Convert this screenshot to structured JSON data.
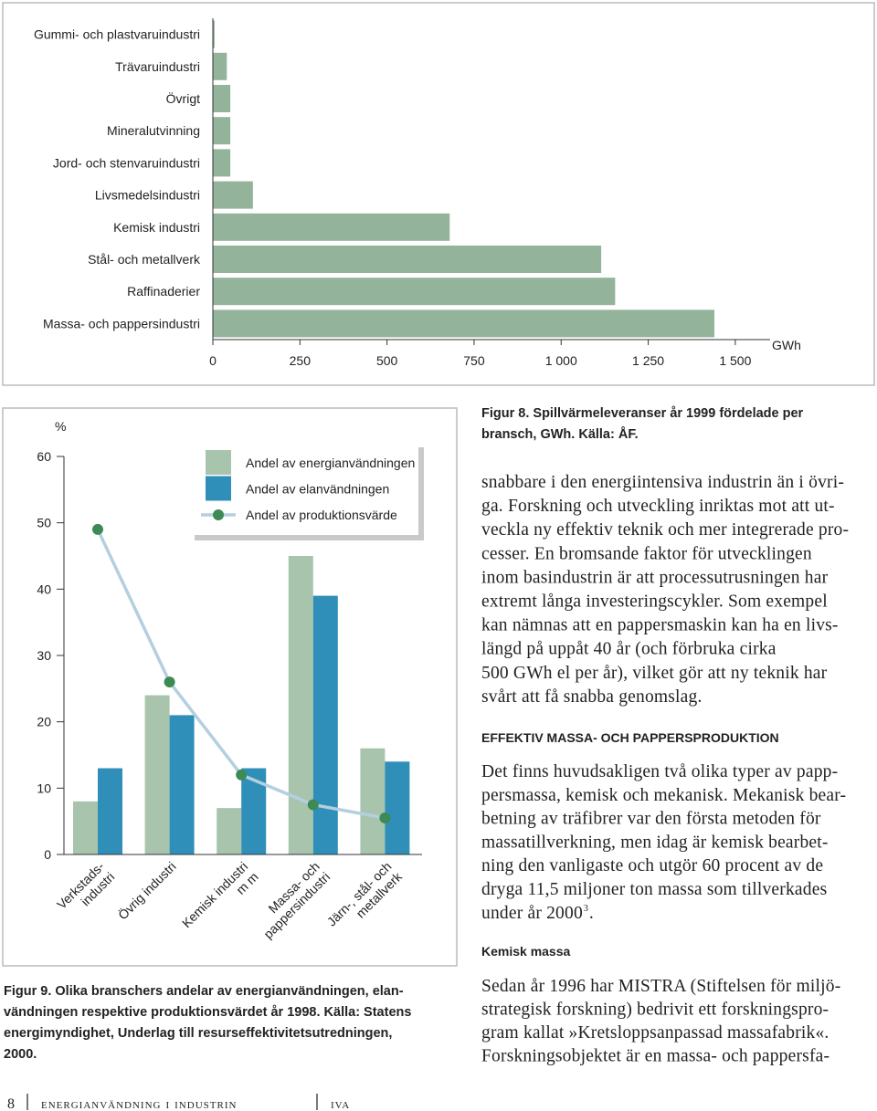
{
  "chart_data": [
    {
      "type": "bar",
      "orientation": "horizontal",
      "color": "#93b39a",
      "categories": [
        "Gummi- och plastvaruindustri",
        "Trävaruindustri",
        "Övrigt",
        "Mineralutvinning",
        "Jord- och stenvaruindustri",
        "Livsmedelsindustri",
        "Kemisk industri",
        "Stål- och metallverk",
        "Raffinaderier",
        "Massa- och pappersindustri"
      ],
      "values": [
        5,
        40,
        50,
        50,
        50,
        115,
        680,
        1115,
        1155,
        1440
      ],
      "xlim": [
        0,
        1600
      ],
      "xticks": [
        0,
        250,
        500,
        750,
        {
          "value": 1000,
          "label": "1 000"
        },
        {
          "value": 1250,
          "label": "1 250"
        },
        {
          "value": 1500,
          "label": "1 500"
        }
      ],
      "x_label": "GWh"
    },
    {
      "type": "bar",
      "categories": [
        "Verkstads-\nindustri",
        "Övrig industri",
        "Kemisk industri\nm m",
        "Massa- och\npappersindustri",
        "Järn-, stål- och\nmetallverk"
      ],
      "series": [
        {
          "name": "Andel av energianvändningen",
          "color": "#a8c4ad",
          "values": [
            8,
            24,
            7,
            45,
            16
          ]
        },
        {
          "name": "Andel av elanvändningen",
          "color": "#2f8fb8",
          "values": [
            13,
            21,
            13,
            39,
            14
          ]
        },
        {
          "name": "Andel av produktionsvärde",
          "type": "line",
          "color": "#b4cfe0",
          "marker_color": "#3d8a55",
          "values": [
            49,
            26,
            12,
            7.5,
            5.5
          ]
        }
      ],
      "ylim": [
        0,
        60
      ],
      "yticks": [
        0,
        10,
        20,
        30,
        40,
        50,
        60
      ],
      "y_label": "%"
    }
  ],
  "figure8_caption": [
    "Figur 8. Spillvärmeleveranser år 1999 fördelade per",
    "bransch, GWh. Källa: ÅF."
  ],
  "figure9_caption": [
    "Figur 9. Olika branschers andelar av energianvändningen, elan-",
    "vändningen respektive produktionsvärdet år 1998. Källa: Statens",
    "energimyndighet, Underlag till resurseffektivitetsutredningen,",
    "2000."
  ],
  "paragraph_1": [
    "snabbare i den energiintensiva industrin än i övri-",
    "ga. Forskning och utveckling inriktas mot att ut-",
    "veckla ny effektiv teknik och mer integrerade pro-",
    "cesser. En bromsande faktor för utvecklingen",
    "inom basindustrin är att processutrusningen har",
    "extremt långa investeringscykler. Som exempel",
    "kan nämnas att en pappersmaskin kan ha en livs-",
    "längd på uppåt 40 år (och förbruka cirka",
    "500 GWh el per år), vilket gör att ny teknik har",
    "svårt att få snabba genomslag."
  ],
  "heading_1": "EFFEKTIV MASSA- OCH PAPPERSPRODUKTION",
  "paragraph_2": {
    "lines": [
      "Det finns huvudsakligen två olika typer av papp-",
      "persmassa, kemisk och mekanisk. Mekanisk bear-",
      "betning av träfibrer var den första metoden för",
      "massatillverkning, men idag är kemisk bearbet-",
      "ning den vanligaste och utgör 60 procent av de",
      "dryga 11,5 miljoner ton massa som tillverkades",
      "under år 2000"
    ],
    "footnote": "3",
    "end": "."
  },
  "heading_2": "Kemisk massa",
  "paragraph_3": [
    "Sedan år 1996 har MISTRA (Stiftelsen för miljö-",
    "strategisk forskning) bedrivit ett forskningspro-",
    "gram kallat »Kretsloppsanpassad massafabrik«.",
    "Forskningsobjektet är en massa- och pappersfa-"
  ],
  "footer": {
    "page": "8",
    "title": "energianvändning i industrin",
    "publisher": "iva"
  }
}
